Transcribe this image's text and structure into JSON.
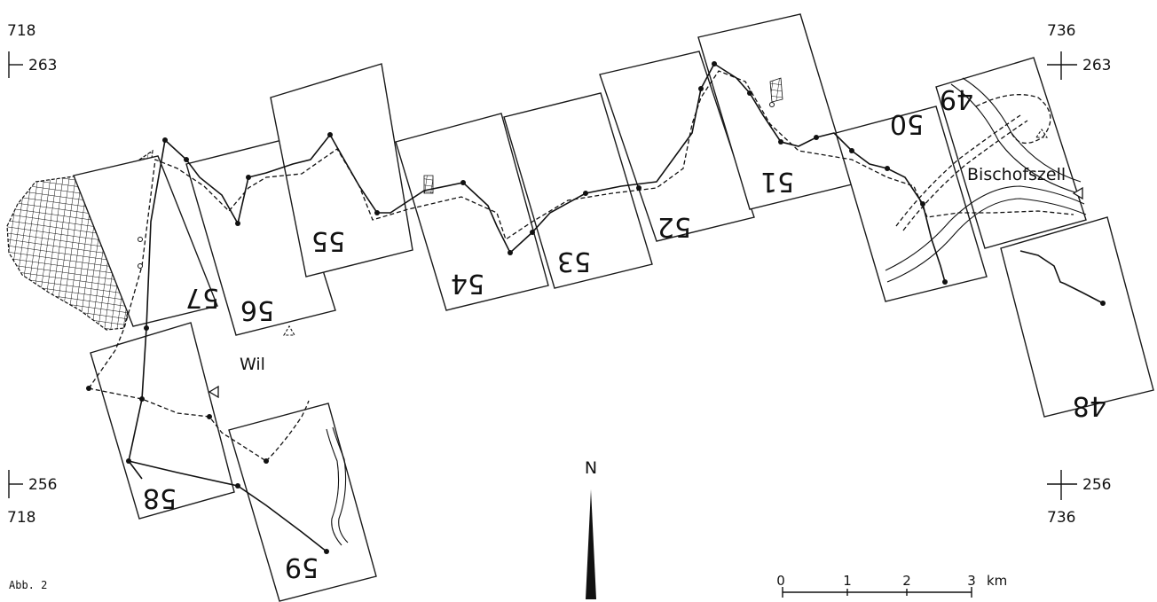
{
  "figure_label": "Abb. 2",
  "coordinates": {
    "top_left": {
      "east": "718",
      "north": "263"
    },
    "top_right": {
      "east": "736",
      "north": "263"
    },
    "bottom_left": {
      "east": "718",
      "north": "256"
    },
    "bottom_right": {
      "east": "736",
      "north": "256"
    }
  },
  "places": {
    "wil": "Wil",
    "bischofszell": "Bischofszell"
  },
  "north_arrow": "N",
  "scale_bar": {
    "ticks": [
      "0",
      "1",
      "2",
      "3"
    ],
    "unit": "km"
  },
  "sheets": [
    "48",
    "49",
    "50",
    "51",
    "52",
    "53",
    "54",
    "55",
    "56",
    "57",
    "58",
    "59"
  ]
}
